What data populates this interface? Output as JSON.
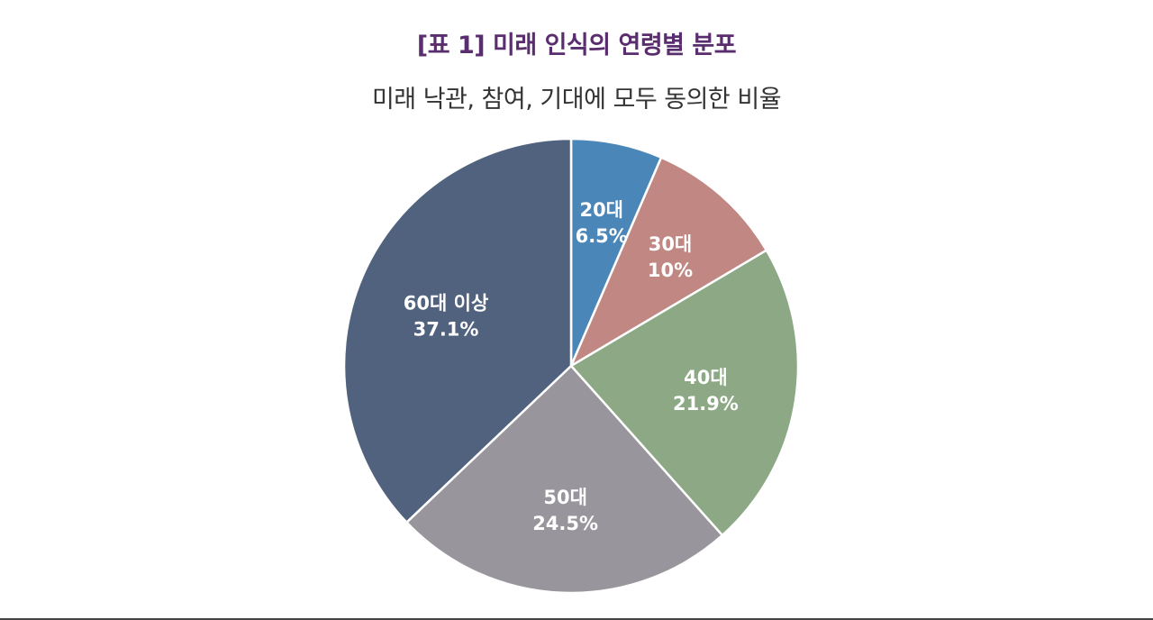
{
  "chart_data": {
    "type": "pie",
    "title": "[표 1] 미래 인식의 연령별 분포",
    "subtitle": "미래 낙관, 참여, 기대에 모두 동의한 비율",
    "slices": [
      {
        "label": "20대",
        "value": 6.5,
        "value_label": "6.5%",
        "color": "#4a86b8"
      },
      {
        "label": "30대",
        "value": 10,
        "value_label": "10%",
        "color": "#c08783"
      },
      {
        "label": "40대",
        "value": 21.9,
        "value_label": "21.9%",
        "color": "#8ca885"
      },
      {
        "label": "50대",
        "value": 24.5,
        "value_label": "24.5%",
        "color": "#98969c"
      },
      {
        "label": "60대 이상",
        "value": 37.1,
        "value_label": "37.1%",
        "color": "#50627e"
      }
    ],
    "start": "12 o'clock",
    "direction": "clockwise",
    "legend": "none"
  }
}
